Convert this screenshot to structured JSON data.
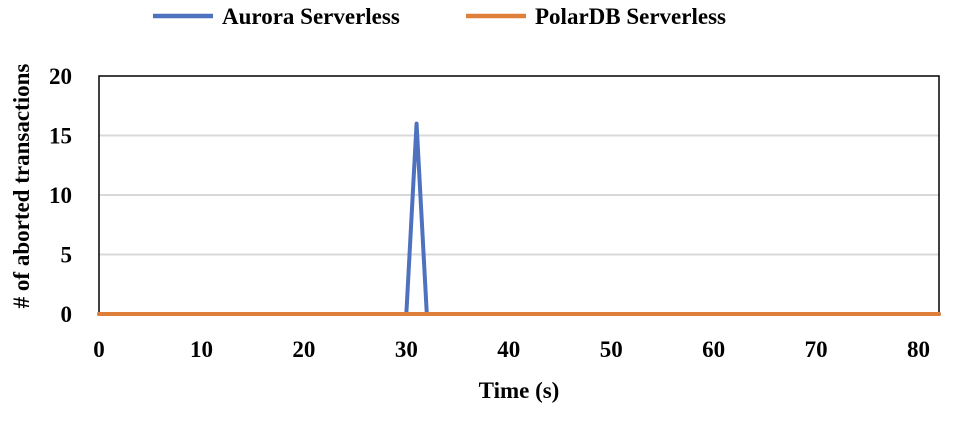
{
  "chart_data": {
    "type": "line",
    "title": "",
    "xlabel": "Time (s)",
    "ylabel": "# of aborted transactions",
    "xlim": [
      0,
      82
    ],
    "ylim": [
      0,
      20
    ],
    "x_ticks": [
      0,
      10,
      20,
      30,
      40,
      50,
      60,
      70,
      80
    ],
    "y_ticks": [
      0,
      5,
      10,
      15,
      20
    ],
    "grid": "horizontal",
    "legend": "top-center",
    "series": [
      {
        "name": "Aurora Serverless",
        "color": "#4f72be",
        "points": [
          [
            0,
            0
          ],
          [
            30,
            0
          ],
          [
            31,
            16
          ],
          [
            32,
            0
          ],
          [
            82,
            0
          ]
        ]
      },
      {
        "name": "PolarDB Serverless",
        "color": "#e07f3a",
        "points": [
          [
            0,
            0
          ],
          [
            82,
            0
          ]
        ]
      }
    ]
  }
}
